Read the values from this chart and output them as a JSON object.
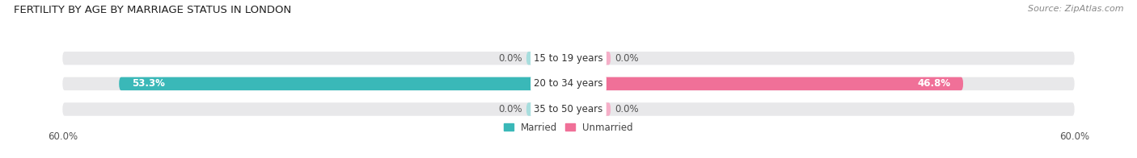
{
  "title": "FERTILITY BY AGE BY MARRIAGE STATUS IN LONDON",
  "source": "Source: ZipAtlas.com",
  "categories": [
    "15 to 19 years",
    "20 to 34 years",
    "35 to 50 years"
  ],
  "married_values": [
    0.0,
    53.3,
    0.0
  ],
  "unmarried_values": [
    0.0,
    46.8,
    0.0
  ],
  "xlim": 60.0,
  "bar_color_married": "#3ab8b8",
  "bar_color_unmarried": "#f07098",
  "bar_color_married_light": "#a8dede",
  "bar_color_unmarried_light": "#f5afc8",
  "bar_bg_color": "#e8e8ea",
  "center_bg_color": "#ffffff",
  "title_fontsize": 9.5,
  "source_fontsize": 8,
  "label_fontsize": 8.5,
  "axis_label_fontsize": 8.5,
  "background_color": "#ffffff",
  "bar_height": 0.52,
  "legend_married": "Married",
  "legend_unmarried": "Unmarried",
  "stub_size": 5.0
}
